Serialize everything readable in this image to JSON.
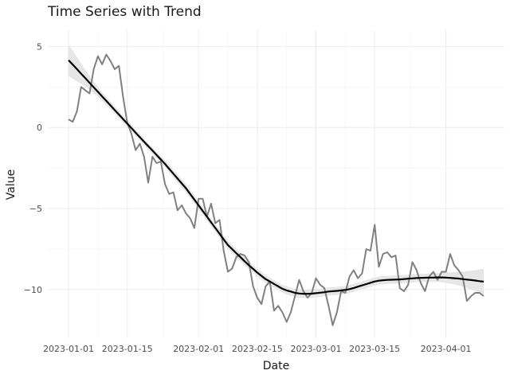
{
  "chart_data": {
    "type": "line",
    "title": "Time Series with Trend",
    "xlabel": "Date",
    "ylabel": "Value",
    "x_start": "2023-01-01",
    "x_end": "2023-04-10",
    "xlim": [
      "2023-01-01",
      "2023-04-10"
    ],
    "ylim": [
      -13,
      6
    ],
    "grid": true,
    "legend": "none",
    "x_ticks": [
      {
        "date": "2023-01-01",
        "label": "2023-01-01"
      },
      {
        "date": "2023-01-15",
        "label": "2023-01-15"
      },
      {
        "date": "2023-02-01",
        "label": "2023-02-01"
      },
      {
        "date": "2023-02-15",
        "label": "2023-02-15"
      },
      {
        "date": "2023-03-01",
        "label": "2023-03-01"
      },
      {
        "date": "2023-03-15",
        "label": "2023-03-15"
      },
      {
        "date": "2023-04-01",
        "label": "2023-04-01"
      }
    ],
    "y_ticks": [
      {
        "value": 5,
        "label": "5"
      },
      {
        "value": 0,
        "label": "0"
      },
      {
        "value": -5,
        "label": "−5"
      },
      {
        "value": -10,
        "label": "−10"
      }
    ],
    "series": [
      {
        "style": "raw",
        "color": "#808080",
        "values": [
          0.5,
          0.35,
          1.0,
          2.5,
          2.3,
          2.1,
          3.6,
          4.4,
          3.9,
          4.5,
          4.1,
          3.6,
          3.8,
          1.9,
          0.3,
          -0.4,
          -1.4,
          -1.0,
          -1.8,
          -3.4,
          -1.8,
          -2.2,
          -2.1,
          -3.5,
          -4.1,
          -4.0,
          -5.1,
          -4.8,
          -5.3,
          -5.6,
          -6.2,
          -4.4,
          -4.4,
          -5.5,
          -4.7,
          -5.9,
          -5.7,
          -7.6,
          -8.9,
          -8.7,
          -8.0,
          -7.8,
          -7.9,
          -8.3,
          -9.8,
          -10.5,
          -10.9,
          -9.8,
          -9.5,
          -11.3,
          -11.0,
          -11.4,
          -12.0,
          -11.4,
          -10.4,
          -9.4,
          -10.1,
          -10.5,
          -10.2,
          -9.3,
          -9.7,
          -9.9,
          -11.0,
          -12.2,
          -11.4,
          -10.1,
          -10.2,
          -9.2,
          -8.8,
          -9.3,
          -9.0,
          -7.5,
          -7.6,
          -6.0,
          -8.6,
          -7.8,
          -7.7,
          -8.0,
          -7.9,
          -9.9,
          -10.1,
          -9.7,
          -8.3,
          -8.8,
          -9.6,
          -10.1,
          -9.2,
          -8.9,
          -9.4,
          -8.9,
          -8.9,
          -7.8,
          -8.5,
          -8.8,
          -9.2,
          -10.7,
          -10.4,
          -10.2,
          -10.2,
          -10.4
        ]
      },
      {
        "style": "trend",
        "color": "#000000",
        "values": [
          4.15,
          3.88,
          3.6,
          3.32,
          3.04,
          2.76,
          2.48,
          2.2,
          1.92,
          1.64,
          1.36,
          1.08,
          0.8,
          0.52,
          0.24,
          -0.04,
          -0.32,
          -0.6,
          -0.88,
          -1.15,
          -1.42,
          -1.7,
          -1.97,
          -2.25,
          -2.55,
          -2.85,
          -3.15,
          -3.45,
          -3.75,
          -4.1,
          -4.45,
          -4.8,
          -5.15,
          -5.5,
          -5.85,
          -6.2,
          -6.55,
          -6.9,
          -7.25,
          -7.5,
          -7.75,
          -8.0,
          -8.25,
          -8.5,
          -8.72,
          -8.95,
          -9.15,
          -9.35,
          -9.5,
          -9.65,
          -9.8,
          -9.95,
          -10.05,
          -10.12,
          -10.2,
          -10.24,
          -10.26,
          -10.26,
          -10.25,
          -10.22,
          -10.19,
          -10.16,
          -10.12,
          -10.1,
          -10.08,
          -10.05,
          -10.02,
          -9.97,
          -9.9,
          -9.82,
          -9.74,
          -9.66,
          -9.58,
          -9.5,
          -9.45,
          -9.42,
          -9.4,
          -9.39,
          -9.38,
          -9.37,
          -9.35,
          -9.33,
          -9.31,
          -9.29,
          -9.28,
          -9.27,
          -9.26,
          -9.26,
          -9.25,
          -9.25,
          -9.26,
          -9.28,
          -9.3,
          -9.32,
          -9.35,
          -9.38,
          -9.41,
          -9.44,
          -9.48,
          -9.51
        ]
      }
    ],
    "confidence_band": {
      "color": "#e6e6e6",
      "upper": [
        5.1,
        4.75,
        4.35,
        3.95,
        3.55,
        3.2,
        2.85,
        2.5,
        2.2,
        1.9,
        1.6,
        1.3,
        1.0,
        0.72,
        0.44,
        0.16,
        -0.12,
        -0.4,
        -0.68,
        -0.95,
        -1.22,
        -1.5,
        -1.76,
        -2.03,
        -2.3,
        -2.6,
        -2.9,
        -3.2,
        -3.5,
        -3.85,
        -4.2,
        -4.55,
        -4.9,
        -5.25,
        -5.6,
        -5.95,
        -6.3,
        -6.65,
        -7.0,
        -7.25,
        -7.5,
        -7.75,
        -8.0,
        -8.25,
        -8.48,
        -8.71,
        -8.91,
        -9.11,
        -9.26,
        -9.41,
        -9.56,
        -9.71,
        -9.8,
        -9.87,
        -9.95,
        -9.99,
        -10.01,
        -10.01,
        -10.0,
        -9.97,
        -9.94,
        -9.91,
        -9.87,
        -9.85,
        -9.83,
        -9.8,
        -9.77,
        -9.72,
        -9.65,
        -9.57,
        -9.49,
        -9.41,
        -9.33,
        -9.25,
        -9.2,
        -9.17,
        -9.15,
        -9.14,
        -9.13,
        -9.12,
        -9.1,
        -9.08,
        -9.06,
        -9.04,
        -9.03,
        -9.02,
        -9.0,
        -8.99,
        -8.97,
        -8.95,
        -8.94,
        -8.93,
        -8.92,
        -8.9,
        -8.88,
        -8.86,
        -8.83,
        -8.8,
        -8.76,
        -8.71
      ],
      "lower": [
        3.2,
        3.0,
        2.85,
        2.7,
        2.53,
        2.32,
        2.1,
        1.9,
        1.64,
        1.38,
        1.12,
        0.86,
        0.6,
        0.32,
        0.04,
        -0.24,
        -0.52,
        -0.8,
        -1.08,
        -1.35,
        -1.62,
        -1.9,
        -2.18,
        -2.47,
        -2.8,
        -3.1,
        -3.4,
        -3.7,
        -4.0,
        -4.35,
        -4.7,
        -5.05,
        -5.4,
        -5.75,
        -6.1,
        -6.45,
        -6.8,
        -7.15,
        -7.5,
        -7.75,
        -8.0,
        -8.25,
        -8.5,
        -8.75,
        -8.96,
        -9.19,
        -9.39,
        -9.59,
        -9.74,
        -9.89,
        -10.04,
        -10.19,
        -10.3,
        -10.37,
        -10.45,
        -10.49,
        -10.51,
        -10.51,
        -10.5,
        -10.47,
        -10.44,
        -10.41,
        -10.37,
        -10.35,
        -10.33,
        -10.3,
        -10.27,
        -10.22,
        -10.15,
        -10.07,
        -9.99,
        -9.91,
        -9.83,
        -9.75,
        -9.7,
        -9.67,
        -9.65,
        -9.64,
        -9.63,
        -9.62,
        -9.6,
        -9.58,
        -9.56,
        -9.54,
        -9.53,
        -9.52,
        -9.52,
        -9.53,
        -9.53,
        -9.55,
        -9.58,
        -9.63,
        -9.68,
        -9.74,
        -9.82,
        -9.9,
        -9.99,
        -10.08,
        -10.2,
        -10.31
      ]
    }
  }
}
